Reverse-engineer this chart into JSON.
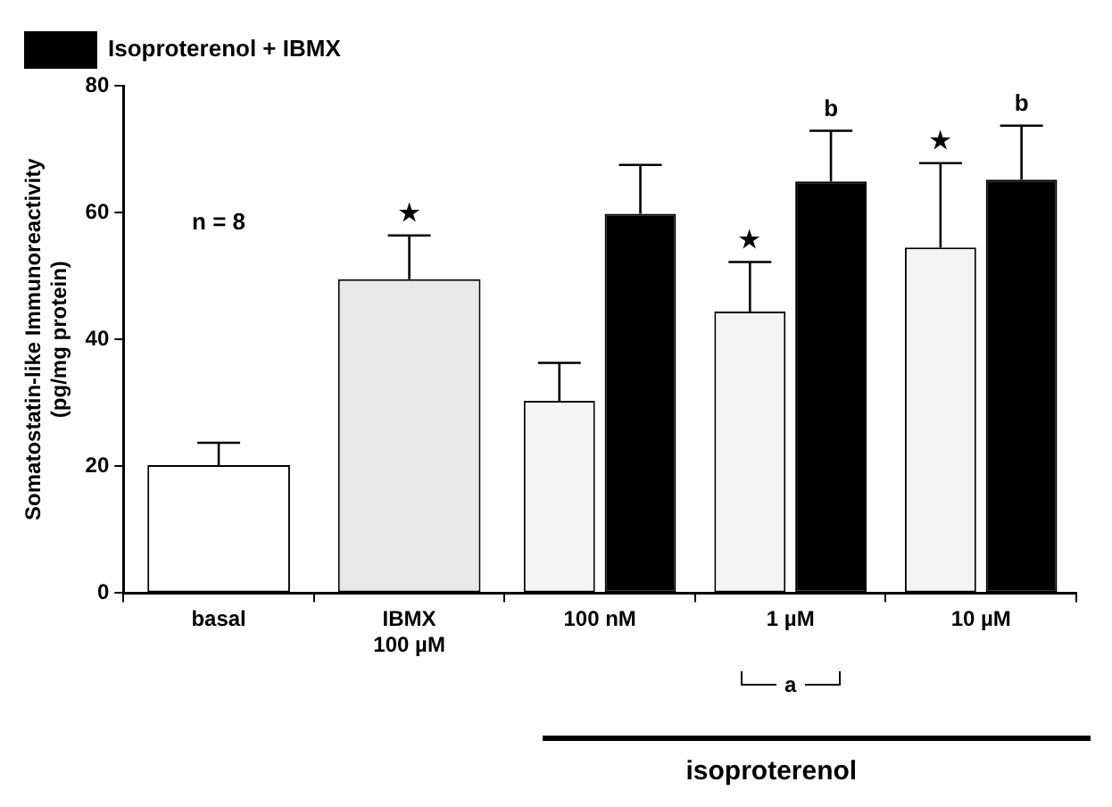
{
  "chart_data": {
    "type": "bar",
    "ylabel": "Somatostatin-like Immunoreactivity\n(pg/mg protein)",
    "categories": [
      "basal",
      "IBMX\n100 µM",
      "100 nM",
      "1 µM",
      "10 µM"
    ],
    "series": [
      {
        "colors": [
          "#ffffff",
          "#e8e8e8",
          "#f4f4f4",
          "#f4f4f4",
          "#f4f4f4"
        ],
        "values": [
          20.2,
          49.5,
          30.3,
          44.4,
          54.5
        ],
        "errors": [
          [
            20.2,
            23.7
          ],
          [
            49.5,
            56.4
          ],
          [
            30.3,
            36.3
          ],
          [
            44.4,
            52.2
          ],
          [
            54.5,
            67.8
          ]
        ]
      },
      {
        "name": "Isoproterenol + IBMX",
        "color": "#000000",
        "values": [
          null,
          null,
          59.8,
          64.9,
          65.2
        ],
        "errors": [
          null,
          null,
          [
            59.8,
            67.5
          ],
          [
            64.9,
            72.9
          ],
          [
            65.2,
            73.7
          ]
        ]
      }
    ],
    "ylim": [
      0,
      80
    ],
    "yticks": [
      0,
      20,
      40,
      60,
      80
    ],
    "grid": false,
    "legend": "top left",
    "annotations": [
      "n = 8",
      {
        "text": "★",
        "x": "IBMX\n100 µM",
        "y": 49.5
      },
      {
        "text": "★",
        "x": "1 µM",
        "y": 44.4
      },
      "★",
      {
        "text": "b",
        "x": "1 µM",
        "y": 64.9
      },
      "b",
      "a",
      "isoproterenol"
    ]
  }
}
